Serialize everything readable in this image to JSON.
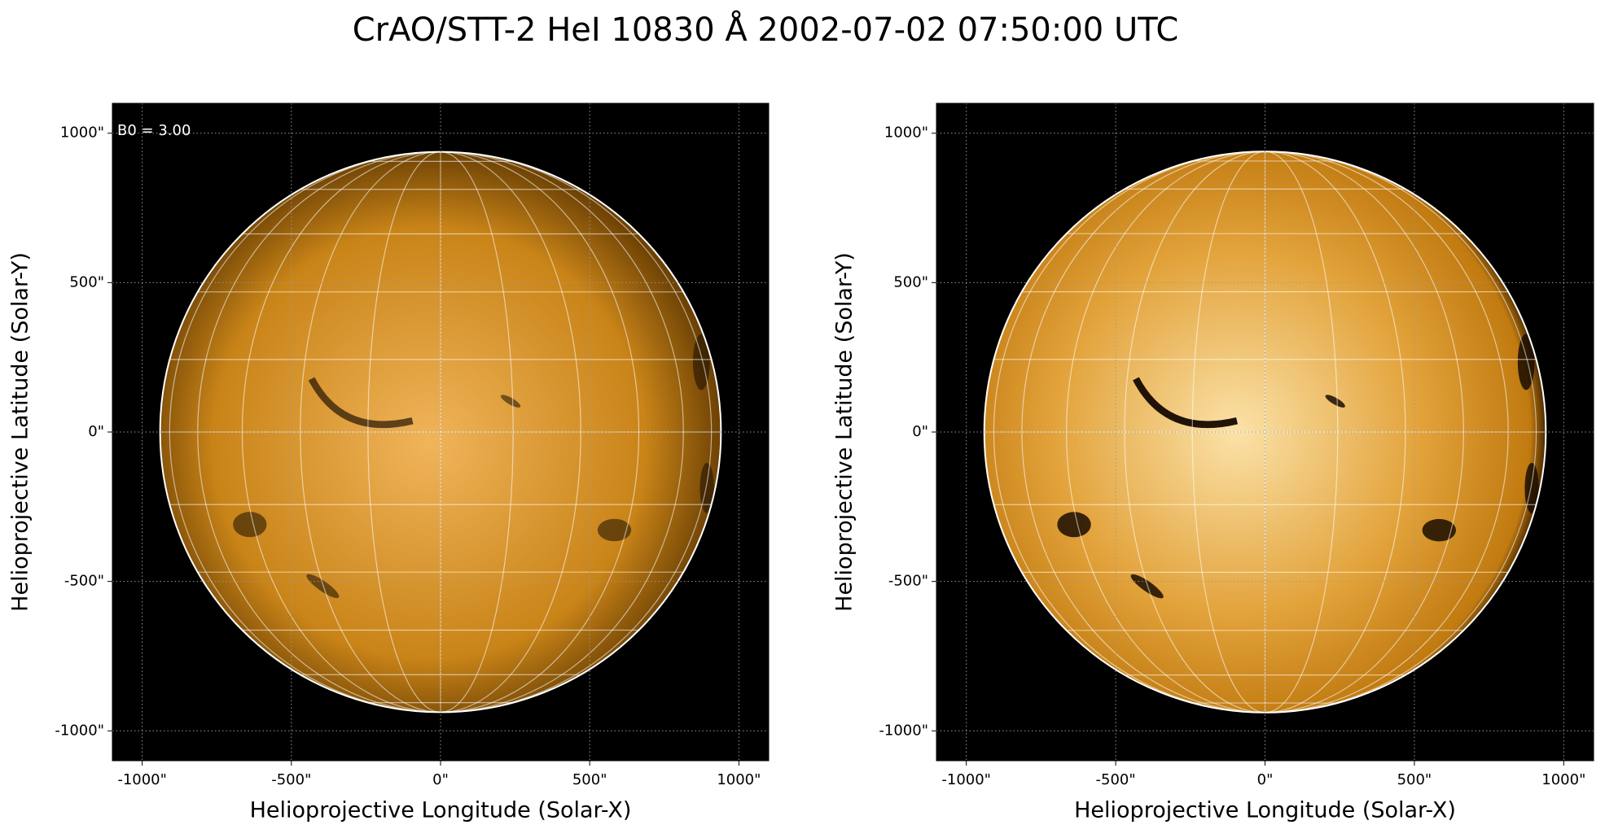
{
  "figure_title": "CrAO/STT-2 HeI 10830 Å 2002-07-02 07:50:00 UTC",
  "chart_data": [
    {
      "type": "image",
      "xlabel": "Helioprojective Longitude (Solar-X)",
      "ylabel": "Helioprojective Latitude (Solar-Y)",
      "annotation": "B0 = 3.00",
      "xlim": [
        -1100,
        1100
      ],
      "ylim": [
        -1100,
        1100
      ],
      "xticks": [
        {
          "value": -1000,
          "label": "-1000\""
        },
        {
          "value": -500,
          "label": "-500\""
        },
        {
          "value": 0,
          "label": "0\""
        },
        {
          "value": 500,
          "label": "500\""
        },
        {
          "value": 1000,
          "label": "1000\""
        }
      ],
      "yticks": [
        {
          "value": -1000,
          "label": "-1000\""
        },
        {
          "value": -500,
          "label": "-500\""
        },
        {
          "value": 0,
          "label": "0\""
        },
        {
          "value": 500,
          "label": "500\""
        },
        {
          "value": 1000,
          "label": "1000\""
        }
      ],
      "disk_radius": 940,
      "color": "#d08a1c",
      "contrast": "low",
      "grid": true
    },
    {
      "type": "image",
      "xlabel": "Helioprojective Longitude (Solar-X)",
      "ylabel": "Helioprojective Latitude (Solar-Y)",
      "xlim": [
        -1100,
        1100
      ],
      "ylim": [
        -1100,
        1100
      ],
      "xticks": [
        {
          "value": -1000,
          "label": "-1000\""
        },
        {
          "value": -500,
          "label": "-500\""
        },
        {
          "value": 0,
          "label": "0\""
        },
        {
          "value": 500,
          "label": "500\""
        },
        {
          "value": 1000,
          "label": "1000\""
        }
      ],
      "yticks": [
        {
          "value": -1000,
          "label": "-1000\""
        },
        {
          "value": -500,
          "label": "-500\""
        },
        {
          "value": 0,
          "label": "0\""
        },
        {
          "value": 500,
          "label": "500\""
        },
        {
          "value": 1000,
          "label": "1000\""
        }
      ],
      "disk_radius": 940,
      "color": "#e6a030",
      "contrast": "high",
      "grid": true
    }
  ]
}
